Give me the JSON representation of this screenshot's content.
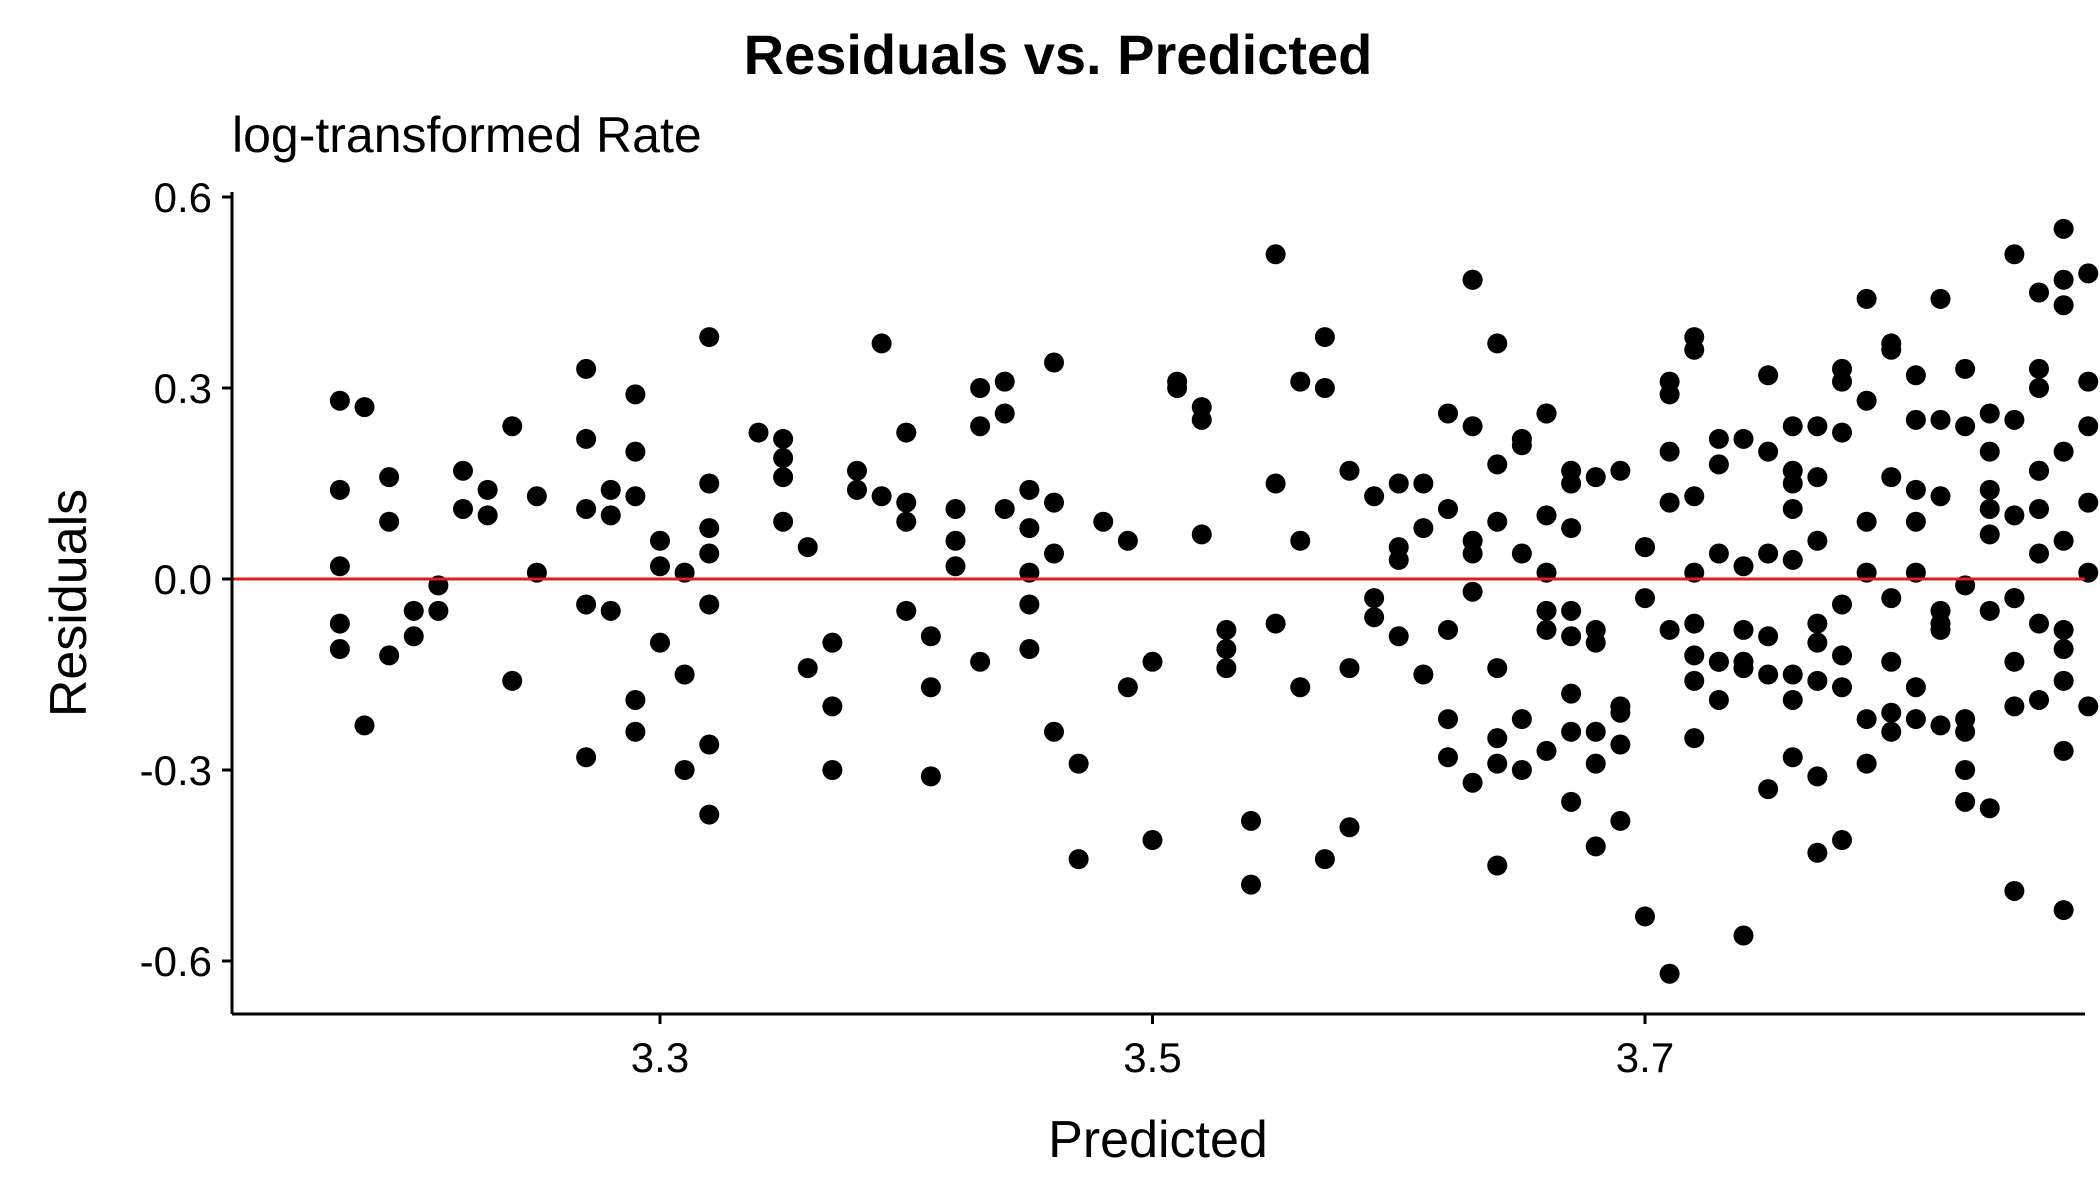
{
  "chart_data": {
    "type": "scatter",
    "title": "Residuals vs. Predicted",
    "subtitle": "log-transformed Rate",
    "xlabel": "Predicted",
    "ylabel": "Residuals",
    "xlim": [
      3.14,
      3.88
    ],
    "ylim": [
      -0.68,
      0.62
    ],
    "xticks": [
      3.3,
      3.5,
      3.7
    ],
    "xtick_labels": [
      "3.3",
      "3.5",
      "3.7"
    ],
    "yticks": [
      -0.6,
      -0.3,
      0.0,
      0.3,
      0.6
    ],
    "ytick_labels": [
      "-0.6",
      "-0.3",
      "0.0",
      "0.3",
      "0.6"
    ],
    "grid": false,
    "reference_line": {
      "y": 0,
      "color": "#e41a1c"
    },
    "point_color": "#000000",
    "points": [
      [
        3.17,
        0.28
      ],
      [
        3.18,
        0.27
      ],
      [
        3.17,
        0.14
      ],
      [
        3.19,
        0.16
      ],
      [
        3.17,
        0.02
      ],
      [
        3.17,
        -0.07
      ],
      [
        3.17,
        -0.11
      ],
      [
        3.18,
        -0.23
      ],
      [
        3.19,
        -0.12
      ],
      [
        3.19,
        0.09
      ],
      [
        3.2,
        -0.05
      ],
      [
        3.2,
        -0.09
      ],
      [
        3.21,
        -0.05
      ],
      [
        3.21,
        -0.01
      ],
      [
        3.22,
        0.11
      ],
      [
        3.22,
        0.17
      ],
      [
        3.23,
        0.14
      ],
      [
        3.23,
        0.1
      ],
      [
        3.24,
        0.24
      ],
      [
        3.24,
        -0.16
      ],
      [
        3.25,
        0.13
      ],
      [
        3.25,
        0.01
      ],
      [
        3.27,
        0.33
      ],
      [
        3.27,
        0.22
      ],
      [
        3.27,
        0.11
      ],
      [
        3.28,
        0.14
      ],
      [
        3.28,
        0.1
      ],
      [
        3.27,
        -0.04
      ],
      [
        3.28,
        -0.05
      ],
      [
        3.27,
        -0.28
      ],
      [
        3.29,
        0.29
      ],
      [
        3.29,
        0.2
      ],
      [
        3.29,
        0.13
      ],
      [
        3.3,
        0.06
      ],
      [
        3.3,
        0.02
      ],
      [
        3.29,
        -0.19
      ],
      [
        3.29,
        -0.24
      ],
      [
        3.3,
        -0.1
      ],
      [
        3.31,
        -0.3
      ],
      [
        3.31,
        -0.15
      ],
      [
        3.31,
        0.01
      ],
      [
        3.32,
        0.38
      ],
      [
        3.32,
        0.15
      ],
      [
        3.32,
        0.08
      ],
      [
        3.32,
        0.04
      ],
      [
        3.32,
        -0.04
      ],
      [
        3.32,
        -0.26
      ],
      [
        3.32,
        -0.37
      ],
      [
        3.34,
        0.23
      ],
      [
        3.35,
        0.22
      ],
      [
        3.35,
        0.19
      ],
      [
        3.35,
        0.16
      ],
      [
        3.35,
        0.09
      ],
      [
        3.36,
        0.05
      ],
      [
        3.36,
        -0.14
      ],
      [
        3.37,
        -0.1
      ],
      [
        3.37,
        -0.2
      ],
      [
        3.37,
        -0.3
      ],
      [
        3.38,
        0.14
      ],
      [
        3.38,
        0.17
      ],
      [
        3.39,
        0.37
      ],
      [
        3.39,
        0.13
      ],
      [
        3.4,
        0.09
      ],
      [
        3.4,
        0.23
      ],
      [
        3.4,
        0.12
      ],
      [
        3.4,
        -0.05
      ],
      [
        3.41,
        -0.09
      ],
      [
        3.41,
        -0.17
      ],
      [
        3.41,
        -0.31
      ],
      [
        3.42,
        0.11
      ],
      [
        3.42,
        0.06
      ],
      [
        3.42,
        0.02
      ],
      [
        3.43,
        0.3
      ],
      [
        3.43,
        0.24
      ],
      [
        3.43,
        -0.13
      ],
      [
        3.44,
        0.31
      ],
      [
        3.44,
        0.11
      ],
      [
        3.44,
        0.26
      ],
      [
        3.45,
        0.08
      ],
      [
        3.45,
        0.01
      ],
      [
        3.45,
        -0.04
      ],
      [
        3.45,
        0.14
      ],
      [
        3.46,
        0.12
      ],
      [
        3.46,
        0.34
      ],
      [
        3.46,
        0.04
      ],
      [
        3.45,
        -0.11
      ],
      [
        3.46,
        -0.24
      ],
      [
        3.47,
        -0.29
      ],
      [
        3.47,
        -0.44
      ],
      [
        3.48,
        0.09
      ],
      [
        3.49,
        0.06
      ],
      [
        3.49,
        -0.17
      ],
      [
        3.5,
        -0.13
      ],
      [
        3.5,
        -0.41
      ],
      [
        3.51,
        0.31
      ],
      [
        3.51,
        0.3
      ],
      [
        3.52,
        0.27
      ],
      [
        3.52,
        0.25
      ],
      [
        3.52,
        0.07
      ],
      [
        3.53,
        -0.14
      ],
      [
        3.53,
        -0.08
      ],
      [
        3.53,
        -0.11
      ],
      [
        3.54,
        -0.38
      ],
      [
        3.54,
        -0.48
      ],
      [
        3.55,
        0.51
      ],
      [
        3.55,
        0.15
      ],
      [
        3.55,
        -0.07
      ],
      [
        3.56,
        0.31
      ],
      [
        3.56,
        0.06
      ],
      [
        3.56,
        -0.17
      ],
      [
        3.57,
        0.38
      ],
      [
        3.57,
        0.3
      ],
      [
        3.57,
        -0.44
      ],
      [
        3.58,
        0.17
      ],
      [
        3.58,
        -0.14
      ],
      [
        3.58,
        -0.39
      ],
      [
        3.59,
        0.13
      ],
      [
        3.59,
        -0.06
      ],
      [
        3.59,
        -0.03
      ],
      [
        3.6,
        0.03
      ],
      [
        3.6,
        0.05
      ],
      [
        3.61,
        0.15
      ],
      [
        3.61,
        -0.15
      ],
      [
        3.62,
        0.11
      ],
      [
        3.62,
        -0.08
      ],
      [
        3.62,
        -0.28
      ],
      [
        3.63,
        0.24
      ],
      [
        3.63,
        0.06
      ],
      [
        3.63,
        0.04
      ],
      [
        3.63,
        -0.02
      ],
      [
        3.64,
        0.37
      ],
      [
        3.64,
        0.18
      ],
      [
        3.64,
        0.09
      ],
      [
        3.64,
        -0.14
      ],
      [
        3.65,
        0.22
      ],
      [
        3.65,
        0.21
      ],
      [
        3.65,
        -0.22
      ],
      [
        3.66,
        0.26
      ],
      [
        3.66,
        0.01
      ],
      [
        3.66,
        -0.08
      ],
      [
        3.67,
        0.17
      ],
      [
        3.67,
        0.15
      ],
      [
        3.67,
        -0.05
      ],
      [
        3.67,
        -0.09
      ],
      [
        3.68,
        -0.08
      ],
      [
        3.68,
        -0.24
      ],
      [
        3.68,
        -0.42
      ],
      [
        3.69,
        -0.38
      ],
      [
        3.69,
        -0.26
      ],
      [
        3.7,
        0.05
      ],
      [
        3.7,
        -0.03
      ],
      [
        3.71,
        0.2
      ],
      [
        3.71,
        0.12
      ],
      [
        3.72,
        0.13
      ],
      [
        3.72,
        -0.07
      ],
      [
        3.72,
        -0.16
      ],
      [
        3.73,
        0.04
      ],
      [
        3.73,
        -0.13
      ],
      [
        3.73,
        -0.19
      ],
      [
        3.74,
        0.02
      ],
      [
        3.74,
        -0.08
      ],
      [
        3.74,
        -0.56
      ],
      [
        3.75,
        0.04
      ],
      [
        3.75,
        -0.09
      ],
      [
        3.75,
        -0.33
      ],
      [
        3.76,
        0.17
      ],
      [
        3.76,
        0.15
      ],
      [
        3.76,
        0.11
      ],
      [
        3.76,
        -0.19
      ],
      [
        3.77,
        0.24
      ],
      [
        3.77,
        0.16
      ],
      [
        3.77,
        -0.07
      ],
      [
        3.77,
        -0.1
      ],
      [
        3.78,
        -0.17
      ],
      [
        3.78,
        -0.12
      ],
      [
        3.78,
        -0.41
      ],
      [
        3.79,
        0.01
      ],
      [
        3.79,
        -0.22
      ],
      [
        3.8,
        0.16
      ],
      [
        3.8,
        -0.21
      ],
      [
        3.8,
        -0.13
      ],
      [
        3.81,
        0.14
      ],
      [
        3.81,
        -0.17
      ],
      [
        3.81,
        -0.22
      ],
      [
        3.81,
        0.32
      ],
      [
        3.82,
        0.13
      ],
      [
        3.82,
        -0.07
      ],
      [
        3.82,
        -0.08
      ],
      [
        3.82,
        -0.23
      ],
      [
        3.83,
        -0.35
      ],
      [
        3.83,
        -0.22
      ],
      [
        3.83,
        -0.24
      ],
      [
        3.84,
        -0.36
      ],
      [
        3.84,
        0.07
      ],
      [
        3.84,
        0.11
      ],
      [
        3.85,
        0.1
      ],
      [
        3.85,
        -0.03
      ],
      [
        3.85,
        -0.13
      ],
      [
        3.85,
        -0.2
      ],
      [
        3.86,
        0.17
      ],
      [
        3.86,
        0.17
      ],
      [
        3.86,
        0.11
      ],
      [
        3.86,
        -0.07
      ],
      [
        3.87,
        -0.16
      ],
      [
        3.87,
        -0.11
      ],
      [
        3.87,
        0.06
      ],
      [
        3.87,
        -0.27
      ],
      [
        3.6,
        -0.09
      ],
      [
        3.6,
        0.15
      ],
      [
        3.61,
        0.08
      ],
      [
        3.62,
        0.26
      ],
      [
        3.62,
        -0.22
      ],
      [
        3.63,
        -0.32
      ],
      [
        3.63,
        0.47
      ],
      [
        3.63,
        0.47
      ],
      [
        3.64,
        -0.45
      ],
      [
        3.64,
        -0.29
      ],
      [
        3.64,
        -0.25
      ],
      [
        3.65,
        0.04
      ],
      [
        3.65,
        -0.3
      ],
      [
        3.66,
        -0.27
      ],
      [
        3.66,
        0.26
      ],
      [
        3.66,
        0.1
      ],
      [
        3.66,
        -0.05
      ],
      [
        3.67,
        -0.35
      ],
      [
        3.67,
        0.08
      ],
      [
        3.67,
        -0.18
      ],
      [
        3.67,
        -0.24
      ],
      [
        3.68,
        0.16
      ],
      [
        3.68,
        -0.1
      ],
      [
        3.68,
        -0.29
      ],
      [
        3.69,
        0.17
      ],
      [
        3.69,
        -0.2
      ],
      [
        3.69,
        -0.21
      ],
      [
        3.7,
        0.05
      ],
      [
        3.7,
        -0.53
      ],
      [
        3.71,
        -0.62
      ],
      [
        3.71,
        0.31
      ],
      [
        3.71,
        0.29
      ],
      [
        3.71,
        -0.08
      ],
      [
        3.72,
        0.38
      ],
      [
        3.72,
        0.36
      ],
      [
        3.72,
        -0.12
      ],
      [
        3.72,
        -0.25
      ],
      [
        3.72,
        0.01
      ],
      [
        3.73,
        -0.13
      ],
      [
        3.73,
        0.18
      ],
      [
        3.73,
        0.22
      ],
      [
        3.74,
        -0.13
      ],
      [
        3.74,
        0.22
      ],
      [
        3.74,
        -0.14
      ],
      [
        3.75,
        0.32
      ],
      [
        3.75,
        -0.15
      ],
      [
        3.75,
        0.2
      ],
      [
        3.76,
        0.24
      ],
      [
        3.76,
        -0.15
      ],
      [
        3.76,
        -0.28
      ],
      [
        3.76,
        0.03
      ],
      [
        3.77,
        -0.16
      ],
      [
        3.77,
        0.06
      ],
      [
        3.77,
        -0.31
      ],
      [
        3.77,
        -0.43
      ],
      [
        3.78,
        0.33
      ],
      [
        3.78,
        0.23
      ],
      [
        3.78,
        -0.04
      ],
      [
        3.78,
        0.31
      ],
      [
        3.79,
        0.09
      ],
      [
        3.79,
        -0.29
      ],
      [
        3.79,
        0.28
      ],
      [
        3.79,
        0.44
      ],
      [
        3.8,
        0.37
      ],
      [
        3.8,
        0.36
      ],
      [
        3.8,
        -0.03
      ],
      [
        3.8,
        -0.24
      ],
      [
        3.81,
        0.25
      ],
      [
        3.81,
        0.09
      ],
      [
        3.81,
        0.01
      ],
      [
        3.82,
        0.44
      ],
      [
        3.82,
        0.25
      ],
      [
        3.82,
        -0.05
      ],
      [
        3.83,
        0.33
      ],
      [
        3.83,
        0.24
      ],
      [
        3.83,
        -0.01
      ],
      [
        3.83,
        -0.3
      ],
      [
        3.84,
        0.26
      ],
      [
        3.84,
        0.2
      ],
      [
        3.84,
        0.14
      ],
      [
        3.84,
        -0.05
      ],
      [
        3.85,
        0.51
      ],
      [
        3.85,
        0.25
      ],
      [
        3.85,
        -0.03
      ],
      [
        3.85,
        -0.49
      ],
      [
        3.86,
        0.45
      ],
      [
        3.86,
        0.33
      ],
      [
        3.86,
        0.3
      ],
      [
        3.86,
        0.04
      ],
      [
        3.86,
        -0.19
      ],
      [
        3.87,
        0.55
      ],
      [
        3.87,
        0.47
      ],
      [
        3.87,
        0.43
      ],
      [
        3.87,
        0.2
      ],
      [
        3.87,
        -0.08
      ],
      [
        3.87,
        -0.52
      ],
      [
        3.88,
        0.48
      ],
      [
        3.88,
        0.31
      ],
      [
        3.88,
        0.24
      ],
      [
        3.88,
        0.12
      ],
      [
        3.88,
        0.01
      ],
      [
        3.88,
        -0.2
      ]
    ]
  }
}
